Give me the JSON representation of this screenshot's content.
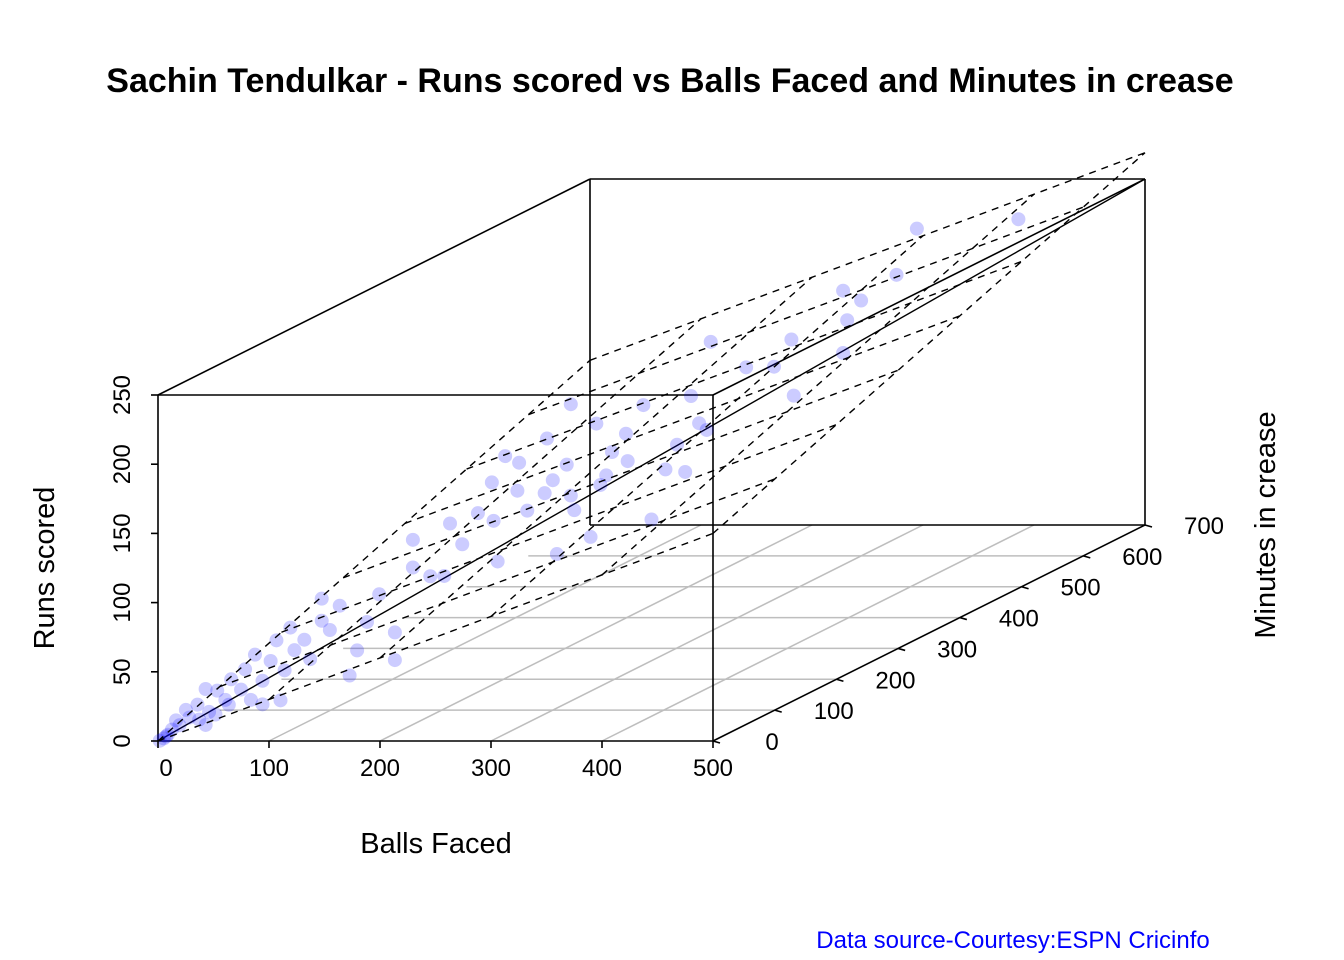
{
  "chart_data": {
    "type": "scatter3d",
    "title": "Sachin Tendulkar - Runs scored vs Balls Faced and Minutes in crease",
    "xlabel": "Balls Faced",
    "ylabel": "Minutes in crease",
    "zlabel": "Runs scored",
    "xlim": [
      0,
      500
    ],
    "ylim": [
      0,
      700
    ],
    "zlim": [
      0,
      250
    ],
    "x_ticks": [
      "0",
      "100",
      "200",
      "300",
      "400",
      "500"
    ],
    "y_ticks": [
      "0",
      "100",
      "200",
      "300",
      "400",
      "500",
      "600",
      "700"
    ],
    "z_ticks": [
      "0",
      "50",
      "100",
      "150",
      "200",
      "250"
    ],
    "grid": true,
    "point_color": "#0000ff",
    "regression_plane": {
      "intercept": 0,
      "balls_coef": 0.3,
      "minutes_coef": 0.17
    },
    "points_columns": [
      "balls",
      "minutes",
      "runs"
    ],
    "points": [
      [
        436,
        610,
        241
      ],
      [
        379,
        548,
        248
      ],
      [
        374,
        524,
        220
      ],
      [
        356,
        499,
        207
      ],
      [
        349,
        489,
        195
      ],
      [
        347,
        486,
        217
      ],
      [
        347,
        486,
        172
      ],
      [
        322,
        451,
        149
      ],
      [
        321,
        449,
        190
      ],
      [
        312,
        437,
        173
      ],
      [
        298,
        417,
        177
      ],
      [
        280,
        392,
        201
      ],
      [
        270,
        378,
        165
      ],
      [
        278,
        389,
        138
      ],
      [
        274,
        384,
        144
      ],
      [
        267,
        374,
        111
      ],
      [
        263,
        368,
        132
      ],
      [
        257,
        360,
        116
      ],
      [
        250,
        350,
        82
      ],
      [
        246,
        344,
        166
      ],
      [
        238,
        333,
        128
      ],
      [
        237,
        332,
        148
      ],
      [
        230,
        322,
        137
      ],
      [
        227,
        318,
        121
      ],
      [
        224,
        314,
        115
      ],
      [
        222,
        311,
        160
      ],
      [
        219,
        307,
        79
      ],
      [
        211,
        295,
        101
      ],
      [
        209,
        293,
        178
      ],
      [
        207,
        290,
        135
      ],
      [
        209,
        293,
        112
      ],
      [
        200,
        280,
        126
      ],
      [
        197,
        276,
        157
      ],
      [
        196,
        274,
        118
      ],
      [
        202,
        283,
        72
      ],
      [
        187,
        262,
        108
      ],
      [
        183,
        256,
        144
      ],
      [
        182,
        255,
        124
      ],
      [
        176,
        246,
        151
      ],
      [
        172,
        241,
        76
      ],
      [
        170,
        238,
        106
      ],
      [
        169,
        237,
        134
      ],
      [
        162,
        227,
        114
      ],
      [
        154,
        216,
        94
      ],
      [
        148,
        207,
        111
      ],
      [
        145,
        203,
        74
      ],
      [
        138,
        193,
        76
      ],
      [
        129,
        181,
        85
      ],
      [
        129,
        181,
        105
      ],
      [
        120,
        168,
        41
      ],
      [
        120,
        168,
        21
      ],
      [
        112,
        157,
        71
      ],
      [
        106,
        148,
        53
      ],
      [
        101,
        141,
        34
      ],
      [
        97,
        136,
        17
      ],
      [
        92,
        129,
        69
      ],
      [
        87,
        122,
        53
      ],
      [
        83,
        116,
        61
      ],
      [
        83,
        116,
        77
      ],
      [
        77,
        108,
        35
      ],
      [
        74,
        104,
        50
      ],
      [
        69,
        97,
        44
      ],
      [
        67,
        94,
        61
      ],
      [
        64,
        90,
        31
      ],
      [
        60,
        84,
        54
      ],
      [
        57,
        80,
        40
      ],
      [
        53,
        74,
        27
      ],
      [
        49,
        69,
        47
      ],
      [
        44,
        62,
        38
      ],
      [
        42,
        59,
        24
      ],
      [
        37,
        52,
        33
      ],
      [
        34,
        48,
        19
      ],
      [
        30,
        42,
        27
      ],
      [
        24,
        34,
        30
      ],
      [
        26,
        36,
        13
      ],
      [
        20,
        28,
        20
      ],
      [
        16,
        22,
        12
      ],
      [
        11,
        15,
        8
      ],
      [
        7,
        10,
        6
      ],
      [
        4,
        6,
        2
      ],
      [
        1,
        1,
        0
      ],
      [
        9,
        13,
        12
      ],
      [
        14,
        20,
        18
      ],
      [
        21,
        29,
        9
      ],
      [
        29,
        41,
        10
      ],
      [
        36,
        50,
        15
      ],
      [
        47,
        66,
        15
      ],
      [
        53,
        74,
        10
      ],
      [
        62,
        87,
        10
      ],
      [
        24,
        34,
        4
      ],
      [
        5,
        7,
        3
      ],
      [
        3,
        4,
        1
      ]
    ]
  },
  "footer": {
    "source": "Data source-Courtesy:ESPN Cricinfo",
    "source_color": "#0000ff"
  }
}
